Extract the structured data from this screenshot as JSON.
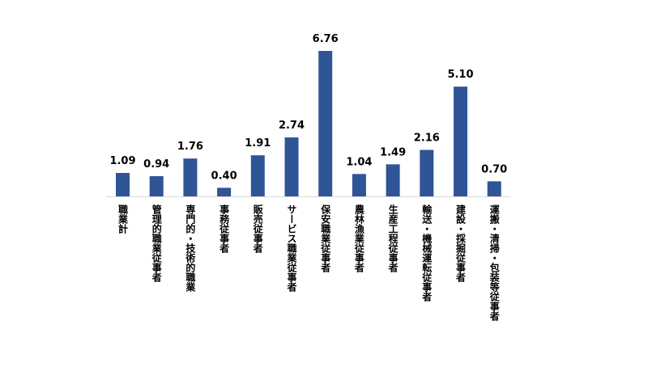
{
  "chart_data": {
    "type": "bar",
    "title": "",
    "xlabel": "",
    "ylabel": "",
    "categories": [
      "職業計",
      "管理的職業従事者",
      "専門的・技術的職業",
      "事務従事者",
      "販売従事者",
      "サービス職業従事者",
      "保安職業従事者",
      "農林漁業従事者",
      "生産工程従事者",
      "輸送・機械運転従事者",
      "建設・採掘従事者",
      "運搬・清掃・包装等従事者"
    ],
    "values": [
      1.09,
      0.94,
      1.76,
      0.4,
      1.91,
      2.74,
      6.76,
      1.04,
      1.49,
      2.16,
      5.1,
      0.7
    ],
    "value_labels": [
      "1.09",
      "0.94",
      "1.76",
      "0.40",
      "1.91",
      "2.74",
      "6.76",
      "1.04",
      "1.49",
      "2.16",
      "5.10",
      "0.70"
    ],
    "ylim": [
      0,
      6.76
    ],
    "grid": false,
    "legend": "none",
    "colors": {
      "bar": "#2f5597",
      "baseline": "#d9d9d9"
    }
  }
}
